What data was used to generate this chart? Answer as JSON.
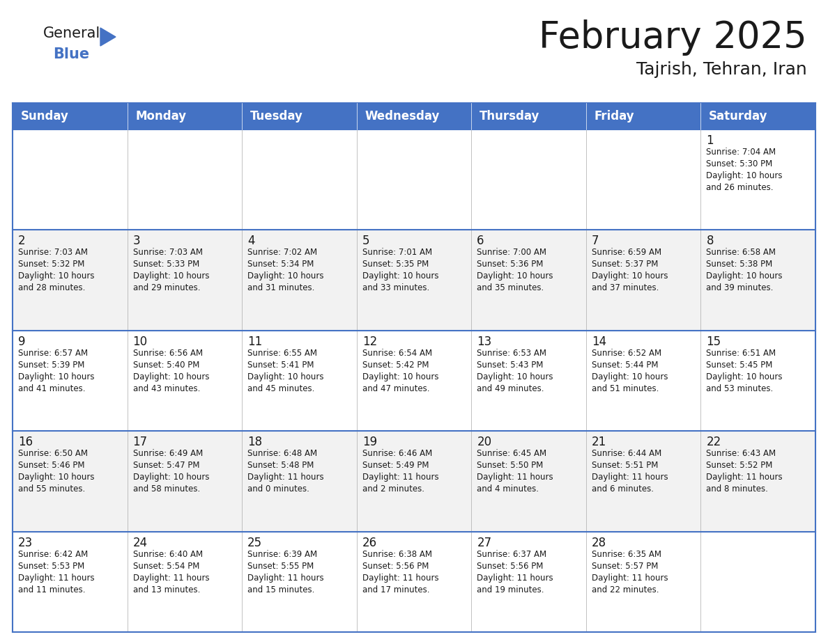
{
  "title": "February 2025",
  "subtitle": "Tajrish, Tehran, Iran",
  "header_bg": "#4472C4",
  "header_text": "#FFFFFF",
  "row_bg_odd": "#FFFFFF",
  "row_bg_even": "#F2F2F2",
  "border_color": "#4472C4",
  "cell_border_color": "#4472C4",
  "days_of_week": [
    "Sunday",
    "Monday",
    "Tuesday",
    "Wednesday",
    "Thursday",
    "Friday",
    "Saturday"
  ],
  "logo_text1": "General",
  "logo_text2": "Blue",
  "logo_color1": "#1a1a1a",
  "logo_color2": "#4472C4",
  "title_fontsize": 38,
  "subtitle_fontsize": 18,
  "header_fontsize": 12,
  "day_num_fontsize": 12,
  "info_fontsize": 8.5,
  "weeks": [
    [
      {
        "day": "",
        "info": ""
      },
      {
        "day": "",
        "info": ""
      },
      {
        "day": "",
        "info": ""
      },
      {
        "day": "",
        "info": ""
      },
      {
        "day": "",
        "info": ""
      },
      {
        "day": "",
        "info": ""
      },
      {
        "day": "1",
        "info": "Sunrise: 7:04 AM\nSunset: 5:30 PM\nDaylight: 10 hours\nand 26 minutes."
      }
    ],
    [
      {
        "day": "2",
        "info": "Sunrise: 7:03 AM\nSunset: 5:32 PM\nDaylight: 10 hours\nand 28 minutes."
      },
      {
        "day": "3",
        "info": "Sunrise: 7:03 AM\nSunset: 5:33 PM\nDaylight: 10 hours\nand 29 minutes."
      },
      {
        "day": "4",
        "info": "Sunrise: 7:02 AM\nSunset: 5:34 PM\nDaylight: 10 hours\nand 31 minutes."
      },
      {
        "day": "5",
        "info": "Sunrise: 7:01 AM\nSunset: 5:35 PM\nDaylight: 10 hours\nand 33 minutes."
      },
      {
        "day": "6",
        "info": "Sunrise: 7:00 AM\nSunset: 5:36 PM\nDaylight: 10 hours\nand 35 minutes."
      },
      {
        "day": "7",
        "info": "Sunrise: 6:59 AM\nSunset: 5:37 PM\nDaylight: 10 hours\nand 37 minutes."
      },
      {
        "day": "8",
        "info": "Sunrise: 6:58 AM\nSunset: 5:38 PM\nDaylight: 10 hours\nand 39 minutes."
      }
    ],
    [
      {
        "day": "9",
        "info": "Sunrise: 6:57 AM\nSunset: 5:39 PM\nDaylight: 10 hours\nand 41 minutes."
      },
      {
        "day": "10",
        "info": "Sunrise: 6:56 AM\nSunset: 5:40 PM\nDaylight: 10 hours\nand 43 minutes."
      },
      {
        "day": "11",
        "info": "Sunrise: 6:55 AM\nSunset: 5:41 PM\nDaylight: 10 hours\nand 45 minutes."
      },
      {
        "day": "12",
        "info": "Sunrise: 6:54 AM\nSunset: 5:42 PM\nDaylight: 10 hours\nand 47 minutes."
      },
      {
        "day": "13",
        "info": "Sunrise: 6:53 AM\nSunset: 5:43 PM\nDaylight: 10 hours\nand 49 minutes."
      },
      {
        "day": "14",
        "info": "Sunrise: 6:52 AM\nSunset: 5:44 PM\nDaylight: 10 hours\nand 51 minutes."
      },
      {
        "day": "15",
        "info": "Sunrise: 6:51 AM\nSunset: 5:45 PM\nDaylight: 10 hours\nand 53 minutes."
      }
    ],
    [
      {
        "day": "16",
        "info": "Sunrise: 6:50 AM\nSunset: 5:46 PM\nDaylight: 10 hours\nand 55 minutes."
      },
      {
        "day": "17",
        "info": "Sunrise: 6:49 AM\nSunset: 5:47 PM\nDaylight: 10 hours\nand 58 minutes."
      },
      {
        "day": "18",
        "info": "Sunrise: 6:48 AM\nSunset: 5:48 PM\nDaylight: 11 hours\nand 0 minutes."
      },
      {
        "day": "19",
        "info": "Sunrise: 6:46 AM\nSunset: 5:49 PM\nDaylight: 11 hours\nand 2 minutes."
      },
      {
        "day": "20",
        "info": "Sunrise: 6:45 AM\nSunset: 5:50 PM\nDaylight: 11 hours\nand 4 minutes."
      },
      {
        "day": "21",
        "info": "Sunrise: 6:44 AM\nSunset: 5:51 PM\nDaylight: 11 hours\nand 6 minutes."
      },
      {
        "day": "22",
        "info": "Sunrise: 6:43 AM\nSunset: 5:52 PM\nDaylight: 11 hours\nand 8 minutes."
      }
    ],
    [
      {
        "day": "23",
        "info": "Sunrise: 6:42 AM\nSunset: 5:53 PM\nDaylight: 11 hours\nand 11 minutes."
      },
      {
        "day": "24",
        "info": "Sunrise: 6:40 AM\nSunset: 5:54 PM\nDaylight: 11 hours\nand 13 minutes."
      },
      {
        "day": "25",
        "info": "Sunrise: 6:39 AM\nSunset: 5:55 PM\nDaylight: 11 hours\nand 15 minutes."
      },
      {
        "day": "26",
        "info": "Sunrise: 6:38 AM\nSunset: 5:56 PM\nDaylight: 11 hours\nand 17 minutes."
      },
      {
        "day": "27",
        "info": "Sunrise: 6:37 AM\nSunset: 5:56 PM\nDaylight: 11 hours\nand 19 minutes."
      },
      {
        "day": "28",
        "info": "Sunrise: 6:35 AM\nSunset: 5:57 PM\nDaylight: 11 hours\nand 22 minutes."
      },
      {
        "day": "",
        "info": ""
      }
    ]
  ]
}
